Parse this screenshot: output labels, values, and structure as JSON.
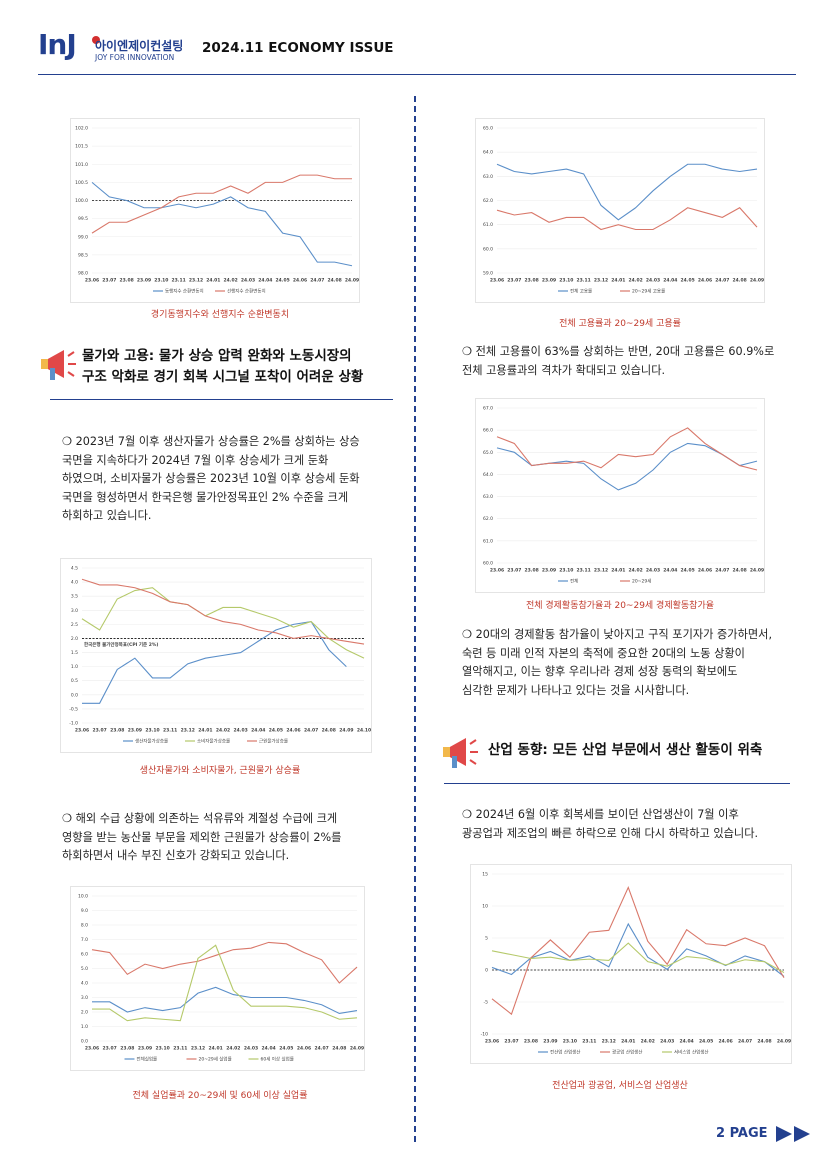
{
  "header": {
    "logo_mark": "InJ",
    "company": "아이엔제이컨설팅",
    "tagline": "JOY FOR INNOVATION",
    "issue": "2024.11 ECONOMY ISSUE"
  },
  "left": {
    "caption_1": "경기동행지수와 선행지수 순환변동치",
    "heading": "물가와 고용: 물가 상승 압력 완화와 노동시장의\n구조 악화로 경기 회복 시그널 포착이 어려운 상황",
    "paragraph_1": "❍ 2023년 7월 이후 생산자물가 상승률은 2%를 상회하는 상승\n국면을 지속하다가 2024년 7월 이후 상승세가 크게 둔화\n하였으며, 소비자물가 상승률은 2023년 10월 이후 상승세 둔화\n국면을 형성하면서 한국은행 물가안정목표인 2% 수준을 크게\n하회하고 있습니다.",
    "caption_2": "생산자물가와 소비자물가, 근원물가 상승률",
    "paragraph_2": "❍ 해외 수급 상황에 의존하는 석유류와 계절성 수급에 크게\n영향을 받는 농산물 부문을 제외한 근원물가 상승률이 2%를\n하회하면서 내수 부진 신호가 강화되고 있습니다.",
    "caption_3": "전체 실업률과 20~29세 및 60세 이상 실업률"
  },
  "right": {
    "caption_1": "전체 고용률과 20~29세 고용률",
    "paragraph_1": "❍ 전체 고용률이 63%를 상회하는 반면, 20대 고용률은 60.9%로\n전체 고용률과의 격차가 확대되고 있습니다.",
    "caption_2": "전체 경제활동참가율과 20~29세 경제활동참가율",
    "paragraph_2": "❍ 20대의 경제활동 참가율이 낮아지고 구직 포기자가 증가하면서,\n숙련 등 미래 인적 자본의 축적에 중요한 20대의 노동 상황이\n열악해지고, 이는 향후 우리나라 경제 성장 동력의 확보에도\n심각한 문제가 나타나고 있다는 것을 시사합니다.",
    "heading": "산업 동향: 모든 산업 부문에서 생산 활동이 위축",
    "paragraph_3": "❍ 2024년 6월 이후 회복세를 보이던 산업생산이 7월 이후\n광공업과 제조업의 빠른 하락으로 인해 다시 하락하고 있습니다.",
    "caption_3": "전산업과 광공업, 서비스업 산업생산"
  },
  "footer": {
    "page": "2 PAGE"
  },
  "charts": [
    {
      "type": "line",
      "categories": [
        "23.06",
        "23.07",
        "23.08",
        "23.09",
        "23.10",
        "23.11",
        "23.12",
        "24.01",
        "24.02",
        "24.03",
        "24.04",
        "24.05",
        "24.06",
        "24.07",
        "24.08",
        "24.09"
      ],
      "series": [
        {
          "name": "동행지수 순환변동치",
          "color": "#5b8fc9",
          "values": [
            100.5,
            100.1,
            100.0,
            99.8,
            99.8,
            99.9,
            99.8,
            99.9,
            100.1,
            99.8,
            99.7,
            99.1,
            99.0,
            98.3,
            98.3,
            98.2
          ]
        },
        {
          "name": "선행지수 순환변동치",
          "color": "#d9786a",
          "values": [
            99.1,
            99.4,
            99.4,
            99.6,
            99.8,
            100.1,
            100.2,
            100.2,
            100.4,
            100.2,
            100.5,
            100.5,
            100.7,
            100.7,
            100.6,
            100.6
          ]
        }
      ],
      "reference_line": 100,
      "ylim": [
        98,
        102
      ],
      "yticks": [
        {
          "value": 98,
          "label": "98.0"
        },
        {
          "value": 98.5,
          "label": "98.5"
        },
        {
          "value": 99,
          "label": "99.0"
        },
        {
          "value": 99.5,
          "label": "99.5"
        },
        {
          "value": 100,
          "label": "100.0"
        },
        {
          "value": 100.5,
          "label": "100.5"
        },
        {
          "value": 101,
          "label": "101.0"
        },
        {
          "value": 101.5,
          "label": "101.5"
        },
        {
          "value": 102,
          "label": "102.0"
        }
      ]
    },
    {
      "type": "line",
      "categories": [
        "23.06",
        "23.07",
        "23.08",
        "23.09",
        "23.10",
        "23.11",
        "23.12",
        "24.01",
        "24.02",
        "24.03",
        "24.04",
        "24.05",
        "24.06",
        "24.07",
        "24.08",
        "24.09"
      ],
      "series": [
        {
          "name": "전체 고용률",
          "color": "#5b8fc9",
          "values": [
            63.5,
            63.2,
            63.1,
            63.2,
            63.3,
            63.1,
            61.8,
            61.2,
            61.7,
            62.4,
            63.0,
            63.5,
            63.5,
            63.3,
            63.2,
            63.3
          ]
        },
        {
          "name": "20~29세 고용률",
          "color": "#d9786a",
          "values": [
            61.6,
            61.4,
            61.5,
            61.1,
            61.3,
            61.3,
            60.8,
            61.0,
            60.8,
            60.8,
            61.2,
            61.7,
            61.5,
            61.3,
            61.7,
            60.9
          ]
        }
      ],
      "ylim": [
        59,
        65
      ],
      "yticks": [
        {
          "value": 59,
          "label": "59.0"
        },
        {
          "value": 60,
          "label": "60.0"
        },
        {
          "value": 61,
          "label": "61.0"
        },
        {
          "value": 62,
          "label": "62.0"
        },
        {
          "value": 63,
          "label": "63.0"
        },
        {
          "value": 64,
          "label": "64.0"
        },
        {
          "value": 65,
          "label": "65.0"
        }
      ]
    },
    {
      "type": "line",
      "categories": [
        "23.06",
        "23.07",
        "23.08",
        "23.09",
        "23.10",
        "23.11",
        "23.12",
        "24.01",
        "24.02",
        "24.03",
        "24.04",
        "24.05",
        "24.06",
        "24.07",
        "24.08",
        "24.09"
      ],
      "series": [
        {
          "name": "전체",
          "color": "#5b8fc9",
          "values": [
            65.2,
            65.0,
            64.4,
            64.5,
            64.6,
            64.5,
            63.8,
            63.3,
            63.6,
            64.2,
            65.0,
            65.4,
            65.3,
            64.9,
            64.4,
            64.6
          ]
        },
        {
          "name": "20~29세",
          "color": "#d9786a",
          "values": [
            65.7,
            65.4,
            64.4,
            64.5,
            64.5,
            64.6,
            64.3,
            64.9,
            64.8,
            64.9,
            65.7,
            66.1,
            65.4,
            64.9,
            64.4,
            64.2
          ]
        }
      ],
      "ylim": [
        60,
        67
      ],
      "yticks": [
        {
          "value": 60,
          "label": "60.0"
        },
        {
          "value": 61,
          "label": "61.0"
        },
        {
          "value": 62,
          "label": "62.0"
        },
        {
          "value": 63,
          "label": "63.0"
        },
        {
          "value": 64,
          "label": "64.0"
        },
        {
          "value": 65,
          "label": "65.0"
        },
        {
          "value": 66,
          "label": "66.0"
        },
        {
          "value": 67,
          "label": "67.0"
        }
      ]
    },
    {
      "type": "line",
      "categories": [
        "23.06",
        "23.07",
        "23.08",
        "23.09",
        "23.10",
        "23.11",
        "23.12",
        "24.01",
        "24.02",
        "24.03",
        "24.04",
        "24.05",
        "24.06",
        "24.07",
        "24.08",
        "24.09",
        "24.10"
      ],
      "series": [
        {
          "name": "생산자물가상승률",
          "color": "#5b8fc9",
          "values": [
            -0.3,
            -0.3,
            0.9,
            1.3,
            0.6,
            0.6,
            1.1,
            1.3,
            1.4,
            1.5,
            1.9,
            2.3,
            2.5,
            2.6,
            1.6,
            1.0,
            null
          ]
        },
        {
          "name": "소비자물가상승률",
          "color": "#b5c96a",
          "values": [
            2.7,
            2.3,
            3.4,
            3.7,
            3.8,
            3.3,
            3.2,
            2.8,
            3.1,
            3.1,
            2.9,
            2.7,
            2.4,
            2.6,
            2.0,
            1.6,
            1.3
          ]
        },
        {
          "name": "근원물가상승률",
          "color": "#d9786a",
          "values": [
            4.1,
            3.9,
            3.9,
            3.8,
            3.6,
            3.3,
            3.2,
            2.8,
            2.6,
            2.5,
            2.3,
            2.2,
            2.0,
            2.1,
            2.0,
            1.9,
            1.8
          ]
        }
      ],
      "reference_line": 2,
      "annotation": "한국은행 물가안정목표(CPI 기준 2%)",
      "ylim": [
        -1,
        4.5
      ],
      "yticks": [
        {
          "value": -1,
          "label": "-1.0"
        },
        {
          "value": -0.5,
          "label": "-0.5"
        },
        {
          "value": 0,
          "label": "0.0"
        },
        {
          "value": 0.5,
          "label": "0.5"
        },
        {
          "value": 1,
          "label": "1.0"
        },
        {
          "value": 1.5,
          "label": "1.5"
        },
        {
          "value": 2,
          "label": "2.0"
        },
        {
          "value": 2.5,
          "label": "2.5"
        },
        {
          "value": 3,
          "label": "3.0"
        },
        {
          "value": 3.5,
          "label": "3.5"
        },
        {
          "value": 4,
          "label": "4.0"
        },
        {
          "value": 4.5,
          "label": "4.5"
        }
      ]
    },
    {
      "type": "line",
      "categories": [
        "23.06",
        "23.07",
        "23.08",
        "23.09",
        "23.10",
        "23.11",
        "23.12",
        "24.01",
        "24.02",
        "24.03",
        "24.04",
        "24.05",
        "24.06",
        "24.07",
        "24.08",
        "24.09"
      ],
      "series": [
        {
          "name": "전체실업률",
          "color": "#5b8fc9",
          "values": [
            2.7,
            2.7,
            2.0,
            2.3,
            2.1,
            2.3,
            3.3,
            3.7,
            3.2,
            3.0,
            3.0,
            3.0,
            2.8,
            2.5,
            1.9,
            2.1
          ]
        },
        {
          "name": "20~29세 실업률",
          "color": "#d9786a",
          "values": [
            6.3,
            6.1,
            4.6,
            5.3,
            5.0,
            5.3,
            5.5,
            5.9,
            6.3,
            6.4,
            6.8,
            6.7,
            6.1,
            5.6,
            4.0,
            5.1
          ]
        },
        {
          "name": "60세 이상 실업률",
          "color": "#b5c96a",
          "values": [
            2.2,
            2.2,
            1.4,
            1.6,
            1.5,
            1.4,
            5.7,
            6.6,
            3.5,
            2.4,
            2.4,
            2.4,
            2.3,
            2.0,
            1.5,
            1.6
          ]
        }
      ],
      "ylim": [
        0,
        10
      ],
      "yticks": [
        {
          "value": 0,
          "label": "0.0"
        },
        {
          "value": 1,
          "label": "1.0"
        },
        {
          "value": 2,
          "label": "2.0"
        },
        {
          "value": 3,
          "label": "3.0"
        },
        {
          "value": 4,
          "label": "4.0"
        },
        {
          "value": 5,
          "label": "5.0"
        },
        {
          "value": 6,
          "label": "6.0"
        },
        {
          "value": 7,
          "label": "7.0"
        },
        {
          "value": 8,
          "label": "8.0"
        },
        {
          "value": 9,
          "label": "9.0"
        },
        {
          "value": 10,
          "label": "10.0"
        }
      ]
    },
    {
      "type": "line",
      "categories": [
        "23.06",
        "23.07",
        "23.08",
        "23.09",
        "23.10",
        "23.11",
        "23.12",
        "24.01",
        "24.02",
        "24.03",
        "24.04",
        "24.05",
        "24.06",
        "24.07",
        "24.08",
        "24.09"
      ],
      "series": [
        {
          "name": "전산업 산업생산",
          "color": "#5b8fc9",
          "values": [
            0.4,
            -0.7,
            1.9,
            2.9,
            1.5,
            2.2,
            0.5,
            7.2,
            2.0,
            0.1,
            3.3,
            2.2,
            0.7,
            2.2,
            1.3,
            -1.0
          ]
        },
        {
          "name": "광공업 산업생산",
          "color": "#d9786a",
          "values": [
            -4.5,
            -6.9,
            1.9,
            4.7,
            2.0,
            5.9,
            6.2,
            12.9,
            4.5,
            0.9,
            6.3,
            4.1,
            3.8,
            5.0,
            3.8,
            -1.2
          ]
        },
        {
          "name": "서비스업 산업생산",
          "color": "#b5c96a",
          "values": [
            3.0,
            2.4,
            1.8,
            2.0,
            1.5,
            1.7,
            1.5,
            4.2,
            1.3,
            0.6,
            2.1,
            1.8,
            0.8,
            1.6,
            1.3,
            -0.4
          ]
        }
      ],
      "reference_line": 0,
      "ylim": [
        -10,
        15
      ],
      "yticks": [
        -10,
        -5,
        0,
        5,
        10,
        15
      ]
    }
  ]
}
